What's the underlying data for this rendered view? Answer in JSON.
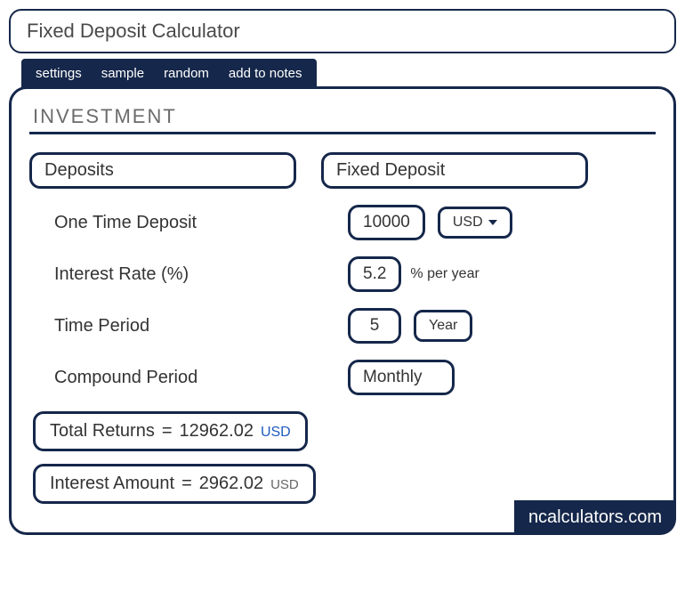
{
  "colors": {
    "primary": "#15274a",
    "background": "#ffffff",
    "text_muted": "#6b6b6b",
    "link_blue": "#1e5bbf"
  },
  "title": "Fixed Deposit Calculator",
  "tabs": {
    "settings": "settings",
    "sample": "sample",
    "random": "random",
    "add_to_notes": "add to notes"
  },
  "section_header": "INVESTMENT",
  "headers": {
    "deposits": "Deposits",
    "fixed_deposit": "Fixed Deposit"
  },
  "fields": {
    "one_time_deposit": {
      "label": "One Time Deposit",
      "value": "10000",
      "currency": "USD"
    },
    "interest_rate": {
      "label": "Interest Rate (%)",
      "value": "5.2",
      "unit": "% per year"
    },
    "time_period": {
      "label": "Time Period",
      "value": "5",
      "unit": "Year"
    },
    "compound_period": {
      "label": "Compound Period",
      "value": "Monthly"
    }
  },
  "results": {
    "total_returns": {
      "label": "Total Returns",
      "equals": "=",
      "value": "12962.02",
      "currency": "USD"
    },
    "interest_amount": {
      "label": "Interest Amount",
      "equals": "=",
      "value": "2962.02",
      "currency": "USD"
    }
  },
  "brand": "ncalculators.com"
}
